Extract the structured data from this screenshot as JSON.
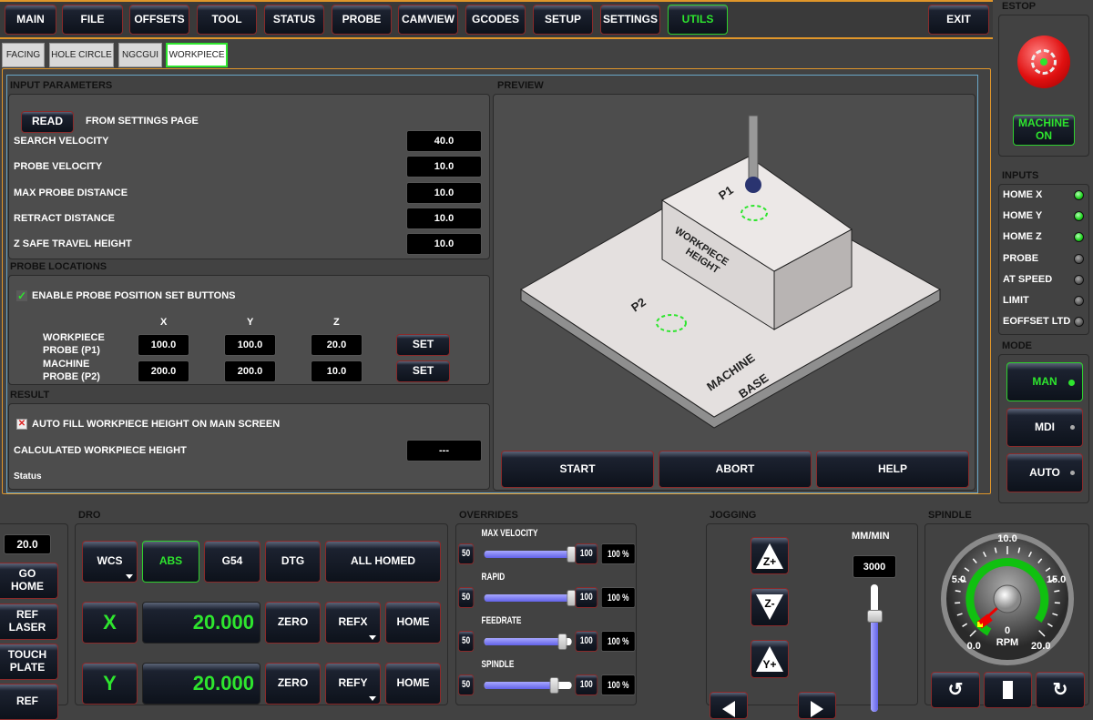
{
  "nav": {
    "tabs": [
      "MAIN",
      "FILE",
      "OFFSETS",
      "TOOL",
      "STATUS",
      "PROBE",
      "CAMVIEW",
      "GCODES",
      "SETUP",
      "SETTINGS",
      "UTILS"
    ],
    "active": "UTILS",
    "exit": "EXIT"
  },
  "subtabs": {
    "items": [
      "FACING",
      "HOLE CIRCLE",
      "NGCGUI",
      "WORKPIECE"
    ],
    "active": "WORKPIECE"
  },
  "input": {
    "title": "INPUT PARAMETERS",
    "read": "READ",
    "read_note": "FROM SETTINGS PAGE",
    "rows": [
      {
        "label": "SEARCH VELOCITY",
        "value": "40.0"
      },
      {
        "label": "PROBE VELOCITY",
        "value": "10.0"
      },
      {
        "label": "MAX PROBE DISTANCE",
        "value": "10.0"
      },
      {
        "label": "RETRACT DISTANCE",
        "value": "10.0"
      },
      {
        "label": "Z SAFE TRAVEL HEIGHT",
        "value": "10.0"
      }
    ]
  },
  "probe": {
    "title": "PROBE LOCATIONS",
    "enable": "ENABLE PROBE POSITION SET BUTTONS",
    "enable_checked": true,
    "cols": [
      "X",
      "Y",
      "Z"
    ],
    "rows": [
      {
        "label": "WORKPIECE PROBE (P1)",
        "x": "100.0",
        "y": "100.0",
        "z": "20.0",
        "set": "SET"
      },
      {
        "label": "MACHINE PROBE (P2)",
        "x": "200.0",
        "y": "200.0",
        "z": "10.0",
        "set": "SET"
      }
    ]
  },
  "result": {
    "title": "RESULT",
    "autofill": "AUTO FILL WORKPIECE HEIGHT ON MAIN SCREEN",
    "autofill_checked": false,
    "calc_label": "CALCULATED WORKPIECE HEIGHT",
    "calc_value": "---",
    "status": "Status"
  },
  "preview": {
    "title": "PREVIEW",
    "labels": {
      "p1": "P1",
      "p2": "P2",
      "wp1": "WORKPIECE",
      "wp2": "HEIGHT",
      "mb1": "MACHINE",
      "mb2": "BASE"
    },
    "start": "START",
    "abort": "ABORT",
    "help": "HELP"
  },
  "estop": {
    "title": "ESTOP",
    "machine": "MACHINE ON"
  },
  "inputs": {
    "title": "INPUTS",
    "items": [
      {
        "label": "HOME X",
        "on": true
      },
      {
        "label": "HOME Y",
        "on": true
      },
      {
        "label": "HOME Z",
        "on": true
      },
      {
        "label": "PROBE",
        "on": false
      },
      {
        "label": "AT SPEED",
        "on": false
      },
      {
        "label": "LIMIT",
        "on": false
      },
      {
        "label": "EOFFSET LTD",
        "on": false
      }
    ]
  },
  "mode": {
    "title": "MODE",
    "items": [
      "MAN",
      "MDI",
      "AUTO"
    ],
    "active": "MAN"
  },
  "left": {
    "value": "20.0",
    "buttons": [
      "GO HOME",
      "REF LASER",
      "TOUCH PLATE",
      "REF"
    ]
  },
  "dro": {
    "title": "DRO",
    "wcs": "WCS",
    "abs": "ABS",
    "g54": "G54",
    "dtg": "DTG",
    "homed": "ALL HOMED",
    "axes": [
      {
        "axis": "X",
        "value": "20.000",
        "zero": "ZERO",
        "ref": "REFX",
        "home": "HOME"
      },
      {
        "axis": "Y",
        "value": "20.000",
        "zero": "ZERO",
        "ref": "REFY",
        "home": "HOME"
      }
    ]
  },
  "overrides": {
    "title": "OVERRIDES",
    "items": [
      {
        "label": "MAX VELOCITY",
        "min": "50",
        "max": "100",
        "value": "100 %",
        "level": 100
      },
      {
        "label": "RAPID",
        "min": "50",
        "max": "100",
        "value": "100 %",
        "level": 100
      },
      {
        "label": "FEEDRATE",
        "min": "50",
        "max": "100",
        "value": "100 %",
        "level": 85
      },
      {
        "label": "SPINDLE",
        "min": "50",
        "max": "100",
        "value": "100 %",
        "level": 72
      }
    ]
  },
  "jogging": {
    "title": "JOGGING",
    "units": "MM/MIN",
    "rate": "3000",
    "zplus": "Z+",
    "zminus": "Z-",
    "yplus": "Y+",
    "slider_level": 75
  },
  "spindle": {
    "title": "SPINDLE",
    "ticks": [
      "0.0",
      "5.0",
      "10.0",
      "15.0",
      "20.0"
    ],
    "rpm": "0",
    "rpm_label": "RPM"
  },
  "colors": {
    "accent": "#2ee52e",
    "border": "#8a2a2a",
    "frame": "#e0962a"
  }
}
